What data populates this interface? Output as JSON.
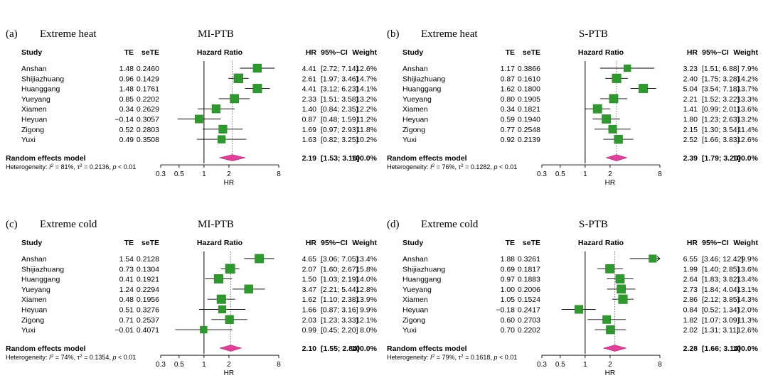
{
  "columns": {
    "study": "Study",
    "te": "TE",
    "sete": "seTE",
    "plot": "Hazard Ratio",
    "hr": "HR",
    "ci": "95%−CI",
    "weight": "Weight"
  },
  "axis": {
    "ticks": [
      "0.3",
      "0.5",
      "1",
      "2",
      "8"
    ],
    "label": "HR"
  },
  "pooled_label": "Random effects model",
  "panels": [
    {
      "label": "(a)",
      "title": "Extreme heat",
      "outcome": "MI-PTB",
      "heterogeneity": {
        "i2": "81%",
        "tau2": "0.2136",
        "p": "< 0.01"
      },
      "pooled": {
        "hr": "2.19",
        "ci": "[1.53; 3.16]",
        "weight": "100.0%"
      }
    },
    {
      "label": "(b)",
      "title": "Extreme heat",
      "outcome": "S-PTB",
      "heterogeneity": {
        "i2": "76%",
        "tau2": "0.1282",
        "p": "< 0.01"
      },
      "pooled": {
        "hr": "2.39",
        "ci": "[1.79; 3.20]",
        "weight": "100.0%"
      }
    },
    {
      "label": "(c)",
      "title": "Extreme cold",
      "outcome": "MI-PTB",
      "heterogeneity": {
        "i2": "74%",
        "tau2": "0.1354",
        "p": "< 0.01"
      },
      "pooled": {
        "hr": "2.10",
        "ci": "[1.55; 2.84]",
        "weight": "100.0%"
      }
    },
    {
      "label": "(d)",
      "title": "Extreme cold",
      "outcome": "S-PTB",
      "heterogeneity": {
        "i2": "79%",
        "tau2": "0.1618",
        "p": "< 0.01"
      },
      "pooled": {
        "hr": "2.28",
        "ci": "[1.66; 3.14]",
        "weight": "100.0%"
      }
    }
  ],
  "colors": {
    "study_marker": "#2e9a2e",
    "pooled_diamond": "#e0409a",
    "line": "#000000"
  },
  "chart_data": [
    {
      "type": "forest",
      "title": "Extreme heat MI-PTB",
      "xscale": "log",
      "xlim": [
        0.3,
        8
      ],
      "xlabel": "HR",
      "reference": 1,
      "studies": [
        {
          "study": "Anshan",
          "te": "1.48",
          "sete": "0.2460",
          "hr": 4.41,
          "lo": 2.72,
          "hi": 7.14,
          "hr_text": "4.41",
          "ci_text": "[2.72; 7.14]",
          "weight": "12.6%"
        },
        {
          "study": "Shijiazhuang",
          "te": "0.96",
          "sete": "0.1429",
          "hr": 2.61,
          "lo": 1.97,
          "hi": 3.46,
          "hr_text": "2.61",
          "ci_text": "[1.97; 3.46]",
          "weight": "14.7%"
        },
        {
          "study": "Huanggang",
          "te": "1.48",
          "sete": "0.1761",
          "hr": 4.41,
          "lo": 3.12,
          "hi": 6.23,
          "hr_text": "4.41",
          "ci_text": "[3.12; 6.23]",
          "weight": "14.1%"
        },
        {
          "study": "Yueyang",
          "te": "0.85",
          "sete": "0.2202",
          "hr": 2.33,
          "lo": 1.51,
          "hi": 3.58,
          "hr_text": "2.33",
          "ci_text": "[1.51; 3.58]",
          "weight": "13.2%"
        },
        {
          "study": "Xiamen",
          "te": "0.34",
          "sete": "0.2629",
          "hr": 1.4,
          "lo": 0.84,
          "hi": 2.35,
          "hr_text": "1.40",
          "ci_text": "[0.84; 2.35]",
          "weight": "12.2%"
        },
        {
          "study": "Heyuan",
          "te": "−0.14",
          "sete": "0.3057",
          "hr": 0.87,
          "lo": 0.48,
          "hi": 1.59,
          "hr_text": "0.87",
          "ci_text": "[0.48; 1.59]",
          "weight": "11.2%"
        },
        {
          "study": "Zigong",
          "te": "0.52",
          "sete": "0.2803",
          "hr": 1.69,
          "lo": 0.97,
          "hi": 2.93,
          "hr_text": "1.69",
          "ci_text": "[0.97; 2.93]",
          "weight": "11.8%"
        },
        {
          "study": "Yuxi",
          "te": "0.49",
          "sete": "0.3508",
          "hr": 1.63,
          "lo": 0.82,
          "hi": 3.25,
          "hr_text": "1.63",
          "ci_text": "[0.82; 3.25]",
          "weight": "10.2%"
        }
      ],
      "pooled": {
        "hr": 2.19,
        "lo": 1.53,
        "hi": 3.16
      }
    },
    {
      "type": "forest",
      "title": "Extreme heat S-PTB",
      "xscale": "log",
      "xlim": [
        0.3,
        8
      ],
      "xlabel": "HR",
      "reference": 1,
      "studies": [
        {
          "study": "Anshan",
          "te": "1.17",
          "sete": "0.3866",
          "hr": 3.23,
          "lo": 1.51,
          "hi": 6.88,
          "hr_text": "3.23",
          "ci_text": "[1.51; 6.88]",
          "weight": "7.9%"
        },
        {
          "study": "Shijiazhuang",
          "te": "0.87",
          "sete": "0.1610",
          "hr": 2.4,
          "lo": 1.75,
          "hi": 3.28,
          "hr_text": "2.40",
          "ci_text": "[1.75; 3.28]",
          "weight": "14.2%"
        },
        {
          "study": "Huanggang",
          "te": "1.62",
          "sete": "0.1800",
          "hr": 5.04,
          "lo": 3.54,
          "hi": 7.18,
          "hr_text": "5.04",
          "ci_text": "[3.54; 7.18]",
          "weight": "13.7%"
        },
        {
          "study": "Yueyang",
          "te": "0.80",
          "sete": "0.1905",
          "hr": 2.21,
          "lo": 1.52,
          "hi": 3.22,
          "hr_text": "2.21",
          "ci_text": "[1.52; 3.22]",
          "weight": "13.3%"
        },
        {
          "study": "Xiamen",
          "te": "0.34",
          "sete": "0.1821",
          "hr": 1.41,
          "lo": 0.99,
          "hi": 2.01,
          "hr_text": "1.41",
          "ci_text": "[0.99; 2.01]",
          "weight": "13.6%"
        },
        {
          "study": "Heyuan",
          "te": "0.59",
          "sete": "0.1940",
          "hr": 1.8,
          "lo": 1.23,
          "hi": 2.63,
          "hr_text": "1.80",
          "ci_text": "[1.23; 2.63]",
          "weight": "13.2%"
        },
        {
          "study": "Zigong",
          "te": "0.77",
          "sete": "0.2548",
          "hr": 2.15,
          "lo": 1.3,
          "hi": 3.54,
          "hr_text": "2.15",
          "ci_text": "[1.30; 3.54]",
          "weight": "11.4%"
        },
        {
          "study": "Yuxi",
          "te": "0.92",
          "sete": "0.2139",
          "hr": 2.52,
          "lo": 1.66,
          "hi": 3.83,
          "hr_text": "2.52",
          "ci_text": "[1.66; 3.83]",
          "weight": "12.6%"
        }
      ],
      "pooled": {
        "hr": 2.39,
        "lo": 1.79,
        "hi": 3.2
      }
    },
    {
      "type": "forest",
      "title": "Extreme cold MI-PTB",
      "xscale": "log",
      "xlim": [
        0.3,
        8
      ],
      "xlabel": "HR",
      "reference": 1,
      "studies": [
        {
          "study": "Anshan",
          "te": "1.54",
          "sete": "0.2128",
          "hr": 4.65,
          "lo": 3.06,
          "hi": 7.05,
          "hr_text": "4.65",
          "ci_text": "[3.06; 7.05]",
          "weight": "13.4%"
        },
        {
          "study": "Shijiazhuang",
          "te": "0.73",
          "sete": "0.1304",
          "hr": 2.07,
          "lo": 1.6,
          "hi": 2.67,
          "hr_text": "2.07",
          "ci_text": "[1.60; 2.67]",
          "weight": "15.8%"
        },
        {
          "study": "Huanggang",
          "te": "0.41",
          "sete": "0.1921",
          "hr": 1.5,
          "lo": 1.03,
          "hi": 2.19,
          "hr_text": "1.50",
          "ci_text": "[1.03; 2.19]",
          "weight": "14.0%"
        },
        {
          "study": "Yueyang",
          "te": "1.24",
          "sete": "0.2294",
          "hr": 3.47,
          "lo": 2.21,
          "hi": 5.44,
          "hr_text": "3.47",
          "ci_text": "[2.21; 5.44]",
          "weight": "12.8%"
        },
        {
          "study": "Xiamen",
          "te": "0.48",
          "sete": "0.1956",
          "hr": 1.62,
          "lo": 1.1,
          "hi": 2.38,
          "hr_text": "1.62",
          "ci_text": "[1.10; 2.38]",
          "weight": "13.9%"
        },
        {
          "study": "Heyuan",
          "te": "0.51",
          "sete": "0.3276",
          "hr": 1.66,
          "lo": 0.87,
          "hi": 3.16,
          "hr_text": "1.66",
          "ci_text": "[0.87; 3.16]",
          "weight": "9.9%"
        },
        {
          "study": "Zigong",
          "te": "0.71",
          "sete": "0.2537",
          "hr": 2.03,
          "lo": 1.23,
          "hi": 3.33,
          "hr_text": "2.03",
          "ci_text": "[1.23; 3.33]",
          "weight": "12.1%"
        },
        {
          "study": "Yuxi",
          "te": "−0.01",
          "sete": "0.4071",
          "hr": 0.99,
          "lo": 0.45,
          "hi": 2.2,
          "hr_text": "0.99",
          "ci_text": "[0.45; 2.20]",
          "weight": "8.0%"
        }
      ],
      "pooled": {
        "hr": 2.1,
        "lo": 1.55,
        "hi": 2.84
      }
    },
    {
      "type": "forest",
      "title": "Extreme cold S-PTB",
      "xscale": "log",
      "xlim": [
        0.3,
        8
      ],
      "xlabel": "HR",
      "reference": 1,
      "studies": [
        {
          "study": "Anshan",
          "te": "1.88",
          "sete": "0.3261",
          "hr": 6.55,
          "lo": 3.46,
          "hi": 12.42,
          "hr_text": "6.55",
          "ci_text": "[3.46; 12.42]",
          "weight": "9.9%"
        },
        {
          "study": "Shijiazhuang",
          "te": "0.69",
          "sete": "0.1817",
          "hr": 1.99,
          "lo": 1.4,
          "hi": 2.85,
          "hr_text": "1.99",
          "ci_text": "[1.40; 2.85]",
          "weight": "13.6%"
        },
        {
          "study": "Huanggang",
          "te": "0.97",
          "sete": "0.1883",
          "hr": 2.64,
          "lo": 1.83,
          "hi": 3.82,
          "hr_text": "2.64",
          "ci_text": "[1.83; 3.82]",
          "weight": "13.4%"
        },
        {
          "study": "Yueyang",
          "te": "1.00",
          "sete": "0.2006",
          "hr": 2.73,
          "lo": 1.84,
          "hi": 4.04,
          "hr_text": "2.73",
          "ci_text": "[1.84; 4.04]",
          "weight": "13.1%"
        },
        {
          "study": "Xiamen",
          "te": "1.05",
          "sete": "0.1524",
          "hr": 2.86,
          "lo": 2.12,
          "hi": 3.85,
          "hr_text": "2.86",
          "ci_text": "[2.12; 3.85]",
          "weight": "14.3%"
        },
        {
          "study": "Heyuan",
          "te": "−0.18",
          "sete": "0.2417",
          "hr": 0.84,
          "lo": 0.52,
          "hi": 1.34,
          "hr_text": "0.84",
          "ci_text": "[0.52; 1.34]",
          "weight": "12.0%"
        },
        {
          "study": "Zigong",
          "te": "0.60",
          "sete": "0.2703",
          "hr": 1.82,
          "lo": 1.07,
          "hi": 3.09,
          "hr_text": "1.82",
          "ci_text": "[1.07; 3.09]",
          "weight": "11.3%"
        },
        {
          "study": "Yuxi",
          "te": "0.70",
          "sete": "0.2202",
          "hr": 2.02,
          "lo": 1.31,
          "hi": 3.11,
          "hr_text": "2.02",
          "ci_text": "[1.31; 3.11]",
          "weight": "12.6%"
        }
      ],
      "pooled": {
        "hr": 2.28,
        "lo": 1.66,
        "hi": 3.14
      }
    }
  ]
}
